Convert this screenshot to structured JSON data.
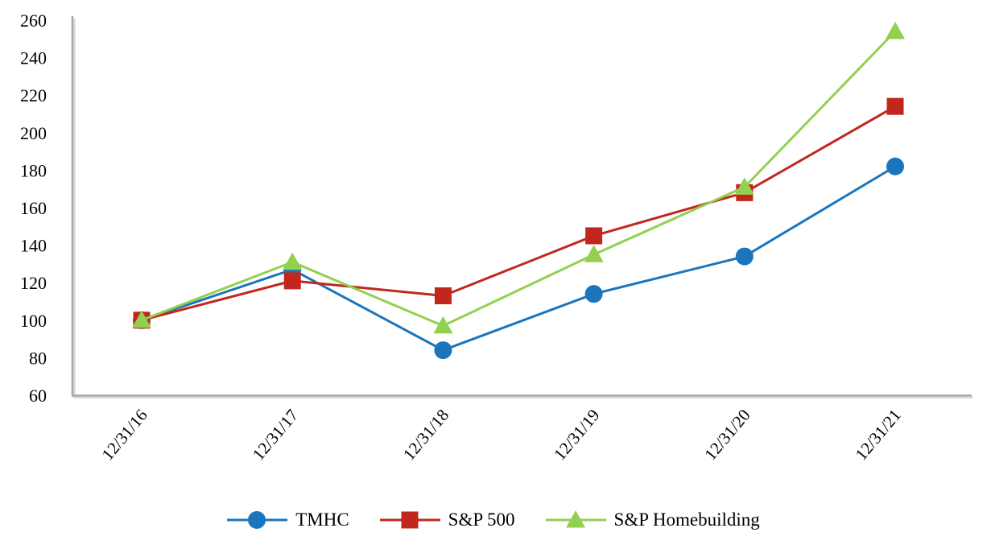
{
  "chart_data": {
    "type": "line",
    "title": "",
    "xlabel": "",
    "ylabel": "",
    "categories": [
      "12/31/16",
      "12/31/17",
      "12/31/18",
      "12/31/19",
      "12/31/20",
      "12/31/21"
    ],
    "series": [
      {
        "name": "TMHC",
        "marker": "circle",
        "color": "#1B75BC",
        "values": [
          100,
          127,
          84,
          114,
          134,
          182
        ]
      },
      {
        "name": "S&P 500",
        "marker": "square",
        "color": "#C2271D",
        "values": [
          100,
          121,
          113,
          145,
          168,
          214
        ]
      },
      {
        "name": "S&P Homebuilding",
        "marker": "triangle",
        "color": "#92D050",
        "values": [
          100,
          131,
          97,
          135,
          171,
          254
        ]
      }
    ],
    "ylim": [
      60,
      260
    ],
    "yticks": [
      60,
      80,
      100,
      120,
      140,
      160,
      180,
      200,
      220,
      240,
      260
    ],
    "ytick_step": 20,
    "grid": false,
    "legend_position": "bottom",
    "axis_color": "#A6A6A6",
    "axis_shadow_color": "#D6D6D6",
    "label_color": "#000000",
    "background": "#FFFFFF"
  }
}
